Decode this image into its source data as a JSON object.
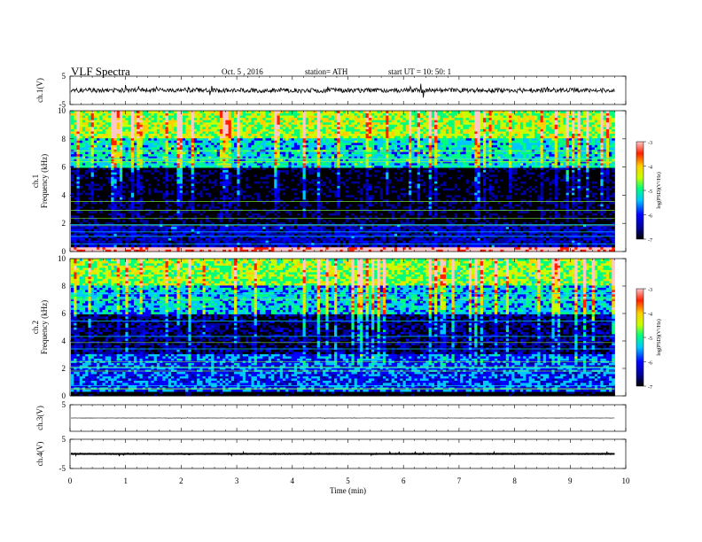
{
  "header": {
    "title": "VLF  Spectra",
    "date": "Oct. 5  , 2016",
    "station": "station= ATH",
    "start": "start  UT  =   10: 50: 1"
  },
  "colors": {
    "axes": "#000000",
    "background": "#ffffff",
    "colormap": [
      "#000000",
      "#00009a",
      "#0000ff",
      "#00c8ff",
      "#00ff7a",
      "#c8ff00",
      "#ffd000",
      "#ff2000",
      "#ffc8c8"
    ]
  },
  "chart_data": [
    {
      "type": "line",
      "name": "ch1-waveform",
      "ylabel": "ch.1(V)",
      "ylim": [
        -5,
        5
      ],
      "yticks": [
        "5",
        "-5"
      ],
      "xlim": [
        0,
        10
      ],
      "level_v": 0,
      "peak_to_peak_v": 1.6
    },
    {
      "type": "heatmap",
      "name": "ch1-spectrogram",
      "ylabel": "ch.1\nFrequency  (kHz)",
      "ylim": [
        0,
        10
      ],
      "yticks": [
        "0",
        "2",
        "4",
        "6",
        "8",
        "10"
      ],
      "xlim": [
        0,
        10
      ],
      "data_end_min": 9.8,
      "colorbar": {
        "label": "log(PSD)(V²/Hz)",
        "range": [
          -7,
          -3
        ],
        "ticks": [
          "-3",
          "-4",
          "-5",
          "-6",
          "-7"
        ]
      },
      "bands": [
        {
          "from_khz": 0.0,
          "to_khz": 0.3,
          "log_psd": -3.2
        },
        {
          "from_khz": 0.3,
          "to_khz": 2.0,
          "log_psd": -6.2
        },
        {
          "from_khz": 2.0,
          "to_khz": 6.0,
          "log_psd": -6.8
        },
        {
          "from_khz": 6.0,
          "to_khz": 8.0,
          "log_psd": -5.3
        },
        {
          "from_khz": 8.0,
          "to_khz": 10.0,
          "log_psd": -4.6
        }
      ]
    },
    {
      "type": "heatmap",
      "name": "ch2-spectrogram",
      "ylabel": "ch.2\nFrequency  (kHz)",
      "ylim": [
        0,
        10
      ],
      "yticks": [
        "0",
        "2",
        "4",
        "6",
        "8",
        "10"
      ],
      "xlim": [
        0,
        10
      ],
      "data_end_min": 9.8,
      "colorbar": {
        "label": "log(PSD)(V²/Hz)",
        "range": [
          -7,
          -3
        ],
        "ticks": [
          "-3",
          "-4",
          "-5",
          "-6",
          "-7"
        ]
      },
      "bands": [
        {
          "from_khz": 0.0,
          "to_khz": 0.3,
          "log_psd": -7.0
        },
        {
          "from_khz": 0.3,
          "to_khz": 3.0,
          "log_psd": -5.8
        },
        {
          "from_khz": 3.0,
          "to_khz": 6.0,
          "log_psd": -6.5
        },
        {
          "from_khz": 6.0,
          "to_khz": 8.0,
          "log_psd": -5.4
        },
        {
          "from_khz": 8.0,
          "to_khz": 10.0,
          "log_psd": -4.7
        }
      ]
    },
    {
      "type": "line",
      "name": "ch3-waveform",
      "ylabel": "ch.3(V)",
      "ylim": [
        -5,
        5
      ],
      "yticks": [
        "5"
      ],
      "xlim": [
        0,
        10
      ],
      "level_v": 0,
      "peak_to_peak_v": 0.1
    },
    {
      "type": "line",
      "name": "ch4-waveform",
      "ylabel": "ch.4(V)",
      "ylim": [
        -5,
        5
      ],
      "yticks": [
        "5",
        "-5"
      ],
      "xlim": [
        0,
        10
      ],
      "level_v": 0,
      "peak_to_peak_v": 0.6
    }
  ],
  "x_axis": {
    "label": "Time  (min)",
    "ticks": [
      "0",
      "1",
      "2",
      "3",
      "4",
      "5",
      "6",
      "7",
      "8",
      "9",
      "10"
    ]
  }
}
